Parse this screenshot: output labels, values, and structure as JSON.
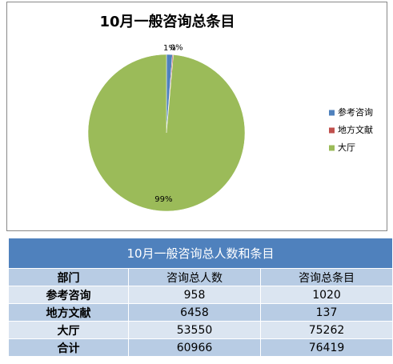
{
  "chart_data": {
    "type": "pie",
    "title": "10月一般咨询总条目",
    "categories": [
      "参考咨询",
      "地方文献",
      "大厅"
    ],
    "values": [
      1.2,
      0.2,
      98.6
    ],
    "value_labels": [
      "1%",
      "0%",
      "99%"
    ],
    "colors": [
      "#4f81bd",
      "#c0504d",
      "#9bbb59"
    ],
    "legend": "right"
  },
  "table": {
    "title": "10月一般咨询总人数和条目",
    "header": [
      "部门",
      "咨询总人数",
      "咨询总条目"
    ],
    "rows": [
      [
        "参考咨询",
        "958",
        "1020"
      ],
      [
        "地方文献",
        "6458",
        "137"
      ],
      [
        "大厅",
        "53550",
        "75262"
      ],
      [
        "合计",
        "60966",
        "76419"
      ]
    ]
  }
}
